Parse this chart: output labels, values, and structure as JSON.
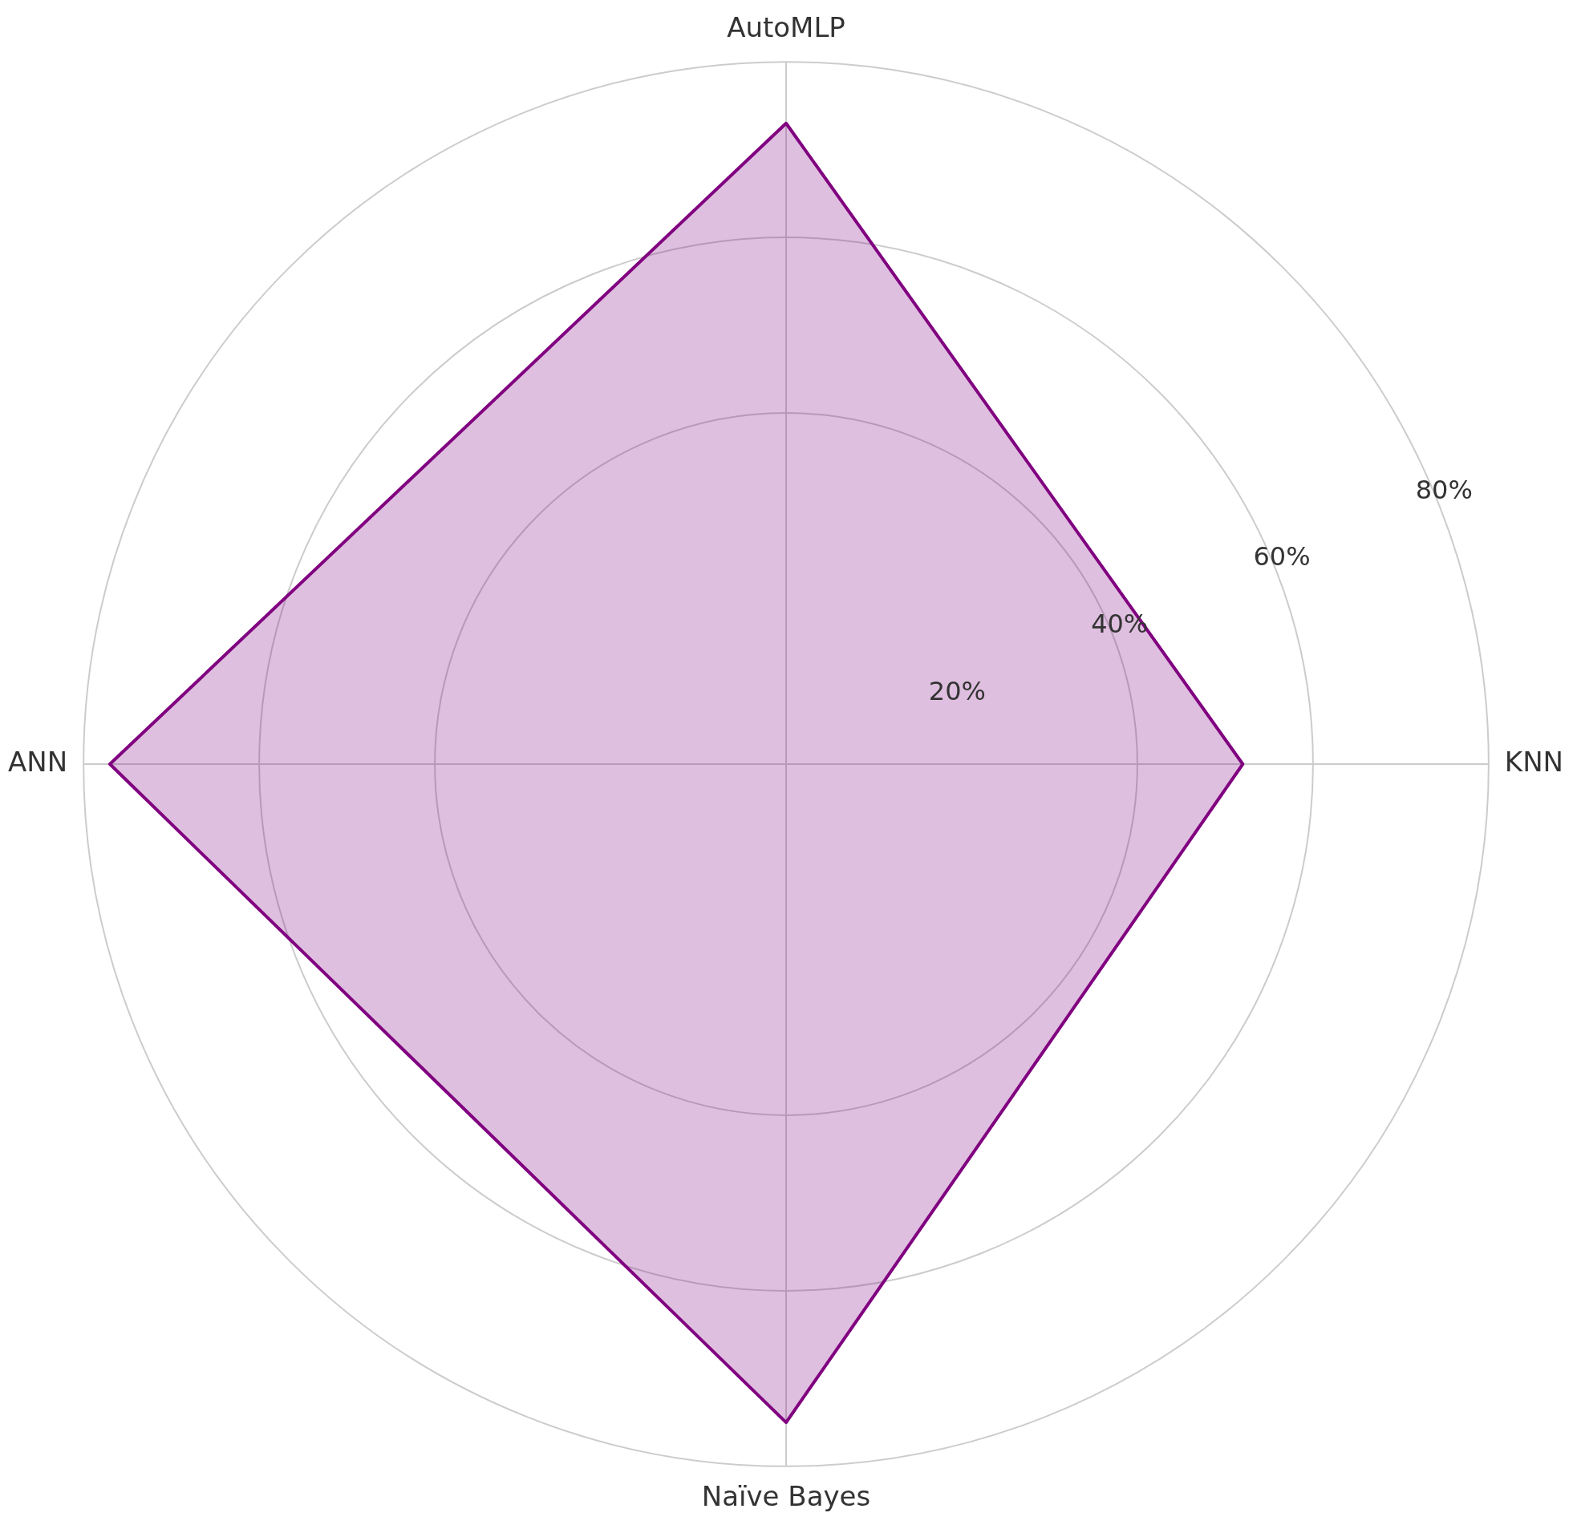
{
  "chart_data": {
    "type": "radar",
    "categories": [
      "AutoMLP",
      "KNN",
      "Naïve Bayes",
      "ANN"
    ],
    "series": [
      {
        "color": "#800080",
        "values": [
          73,
          52,
          75,
          77
        ]
      }
    ],
    "ylim": [
      0,
      80
    ],
    "yticks": [
      {
        "value": 20,
        "label": "20%"
      },
      {
        "value": 40,
        "label": "40%"
      },
      {
        "value": 60,
        "label": "60%"
      },
      {
        "value": 80,
        "label": "80%"
      }
    ],
    "grid": true,
    "legend": false,
    "marker": "none"
  }
}
